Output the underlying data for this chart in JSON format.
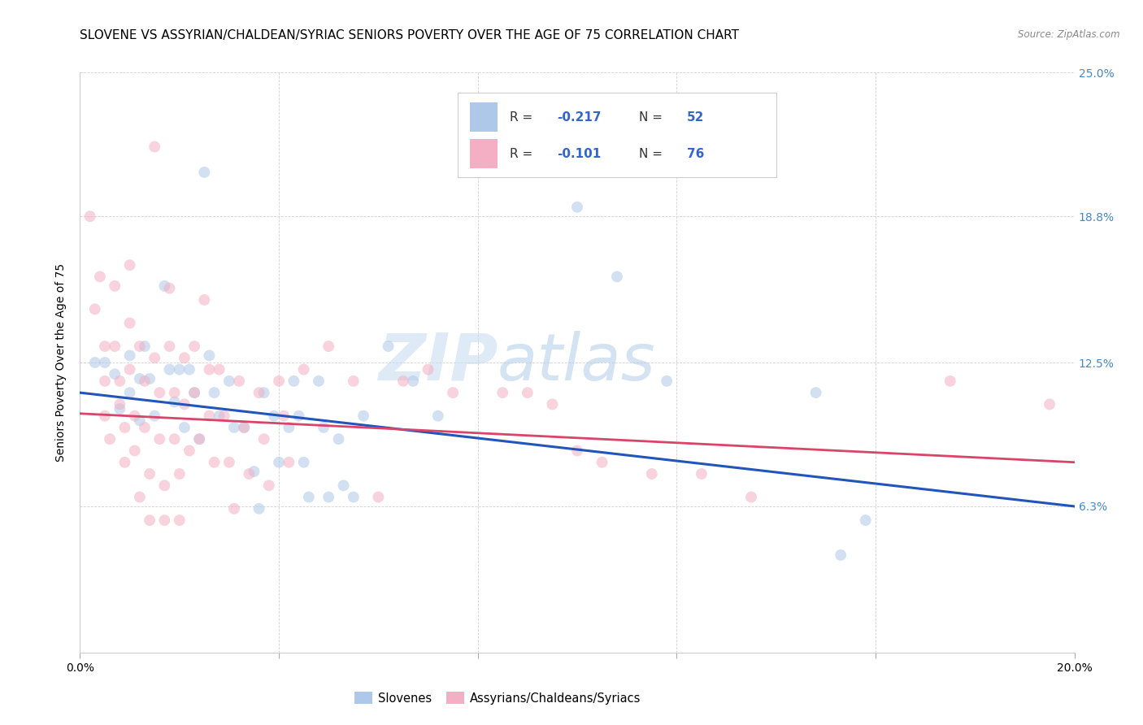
{
  "title": "SLOVENE VS ASSYRIAN/CHALDEAN/SYRIAC SENIORS POVERTY OVER THE AGE OF 75 CORRELATION CHART",
  "source": "Source: ZipAtlas.com",
  "ylabel": "Seniors Poverty Over the Age of 75",
  "xlim": [
    0.0,
    0.2
  ],
  "ylim": [
    0.0,
    0.25
  ],
  "ytick_right_labels": [
    "6.3%",
    "12.5%",
    "18.8%",
    "25.0%"
  ],
  "ytick_right_values": [
    0.063,
    0.125,
    0.188,
    0.25
  ],
  "slovene_color": "#adc8e8",
  "assyrian_color": "#f4afc4",
  "line_slovene_color": "#2255bb",
  "line_assyrian_color": "#d94468",
  "slovene_line_start": 0.112,
  "slovene_line_end": 0.063,
  "assyrian_line_start": 0.103,
  "assyrian_line_end": 0.082,
  "slovene_points": [
    [
      0.003,
      0.125
    ],
    [
      0.005,
      0.125
    ],
    [
      0.007,
      0.12
    ],
    [
      0.008,
      0.105
    ],
    [
      0.01,
      0.128
    ],
    [
      0.01,
      0.112
    ],
    [
      0.012,
      0.118
    ],
    [
      0.012,
      0.1
    ],
    [
      0.013,
      0.132
    ],
    [
      0.014,
      0.118
    ],
    [
      0.015,
      0.102
    ],
    [
      0.017,
      0.158
    ],
    [
      0.018,
      0.122
    ],
    [
      0.019,
      0.108
    ],
    [
      0.02,
      0.122
    ],
    [
      0.021,
      0.097
    ],
    [
      0.022,
      0.122
    ],
    [
      0.023,
      0.112
    ],
    [
      0.024,
      0.092
    ],
    [
      0.025,
      0.207
    ],
    [
      0.026,
      0.128
    ],
    [
      0.027,
      0.112
    ],
    [
      0.028,
      0.102
    ],
    [
      0.03,
      0.117
    ],
    [
      0.031,
      0.097
    ],
    [
      0.033,
      0.097
    ],
    [
      0.035,
      0.078
    ],
    [
      0.036,
      0.062
    ],
    [
      0.037,
      0.112
    ],
    [
      0.039,
      0.102
    ],
    [
      0.04,
      0.082
    ],
    [
      0.042,
      0.097
    ],
    [
      0.043,
      0.117
    ],
    [
      0.044,
      0.102
    ],
    [
      0.045,
      0.082
    ],
    [
      0.046,
      0.067
    ],
    [
      0.048,
      0.117
    ],
    [
      0.049,
      0.097
    ],
    [
      0.05,
      0.067
    ],
    [
      0.052,
      0.092
    ],
    [
      0.053,
      0.072
    ],
    [
      0.055,
      0.067
    ],
    [
      0.057,
      0.102
    ],
    [
      0.062,
      0.132
    ],
    [
      0.067,
      0.117
    ],
    [
      0.072,
      0.102
    ],
    [
      0.1,
      0.192
    ],
    [
      0.108,
      0.162
    ],
    [
      0.118,
      0.117
    ],
    [
      0.148,
      0.112
    ],
    [
      0.153,
      0.042
    ],
    [
      0.158,
      0.057
    ]
  ],
  "assyrian_points": [
    [
      0.002,
      0.188
    ],
    [
      0.003,
      0.148
    ],
    [
      0.004,
      0.162
    ],
    [
      0.005,
      0.132
    ],
    [
      0.005,
      0.117
    ],
    [
      0.005,
      0.102
    ],
    [
      0.006,
      0.092
    ],
    [
      0.007,
      0.158
    ],
    [
      0.007,
      0.132
    ],
    [
      0.008,
      0.117
    ],
    [
      0.008,
      0.107
    ],
    [
      0.009,
      0.097
    ],
    [
      0.009,
      0.082
    ],
    [
      0.01,
      0.167
    ],
    [
      0.01,
      0.142
    ],
    [
      0.01,
      0.122
    ],
    [
      0.011,
      0.102
    ],
    [
      0.011,
      0.087
    ],
    [
      0.012,
      0.067
    ],
    [
      0.012,
      0.132
    ],
    [
      0.013,
      0.117
    ],
    [
      0.013,
      0.097
    ],
    [
      0.014,
      0.077
    ],
    [
      0.014,
      0.057
    ],
    [
      0.015,
      0.218
    ],
    [
      0.015,
      0.127
    ],
    [
      0.016,
      0.112
    ],
    [
      0.016,
      0.092
    ],
    [
      0.017,
      0.072
    ],
    [
      0.017,
      0.057
    ],
    [
      0.018,
      0.157
    ],
    [
      0.018,
      0.132
    ],
    [
      0.019,
      0.112
    ],
    [
      0.019,
      0.092
    ],
    [
      0.02,
      0.077
    ],
    [
      0.02,
      0.057
    ],
    [
      0.021,
      0.127
    ],
    [
      0.021,
      0.107
    ],
    [
      0.022,
      0.087
    ],
    [
      0.023,
      0.132
    ],
    [
      0.023,
      0.112
    ],
    [
      0.024,
      0.092
    ],
    [
      0.025,
      0.152
    ],
    [
      0.026,
      0.122
    ],
    [
      0.026,
      0.102
    ],
    [
      0.027,
      0.082
    ],
    [
      0.028,
      0.122
    ],
    [
      0.029,
      0.102
    ],
    [
      0.03,
      0.082
    ],
    [
      0.031,
      0.062
    ],
    [
      0.032,
      0.117
    ],
    [
      0.033,
      0.097
    ],
    [
      0.034,
      0.077
    ],
    [
      0.036,
      0.112
    ],
    [
      0.037,
      0.092
    ],
    [
      0.038,
      0.072
    ],
    [
      0.04,
      0.117
    ],
    [
      0.041,
      0.102
    ],
    [
      0.042,
      0.082
    ],
    [
      0.045,
      0.122
    ],
    [
      0.05,
      0.132
    ],
    [
      0.055,
      0.117
    ],
    [
      0.06,
      0.067
    ],
    [
      0.065,
      0.117
    ],
    [
      0.07,
      0.122
    ],
    [
      0.075,
      0.112
    ],
    [
      0.085,
      0.112
    ],
    [
      0.09,
      0.112
    ],
    [
      0.095,
      0.107
    ],
    [
      0.1,
      0.087
    ],
    [
      0.105,
      0.082
    ],
    [
      0.115,
      0.077
    ],
    [
      0.125,
      0.077
    ],
    [
      0.135,
      0.067
    ],
    [
      0.175,
      0.117
    ],
    [
      0.195,
      0.107
    ]
  ],
  "watermark_zip": "ZIP",
  "watermark_atlas": "atlas",
  "background_color": "#ffffff",
  "grid_color": "#d0d0d0",
  "title_fontsize": 11,
  "axis_label_fontsize": 10,
  "tick_fontsize": 10,
  "marker_size": 100,
  "marker_alpha": 0.55
}
